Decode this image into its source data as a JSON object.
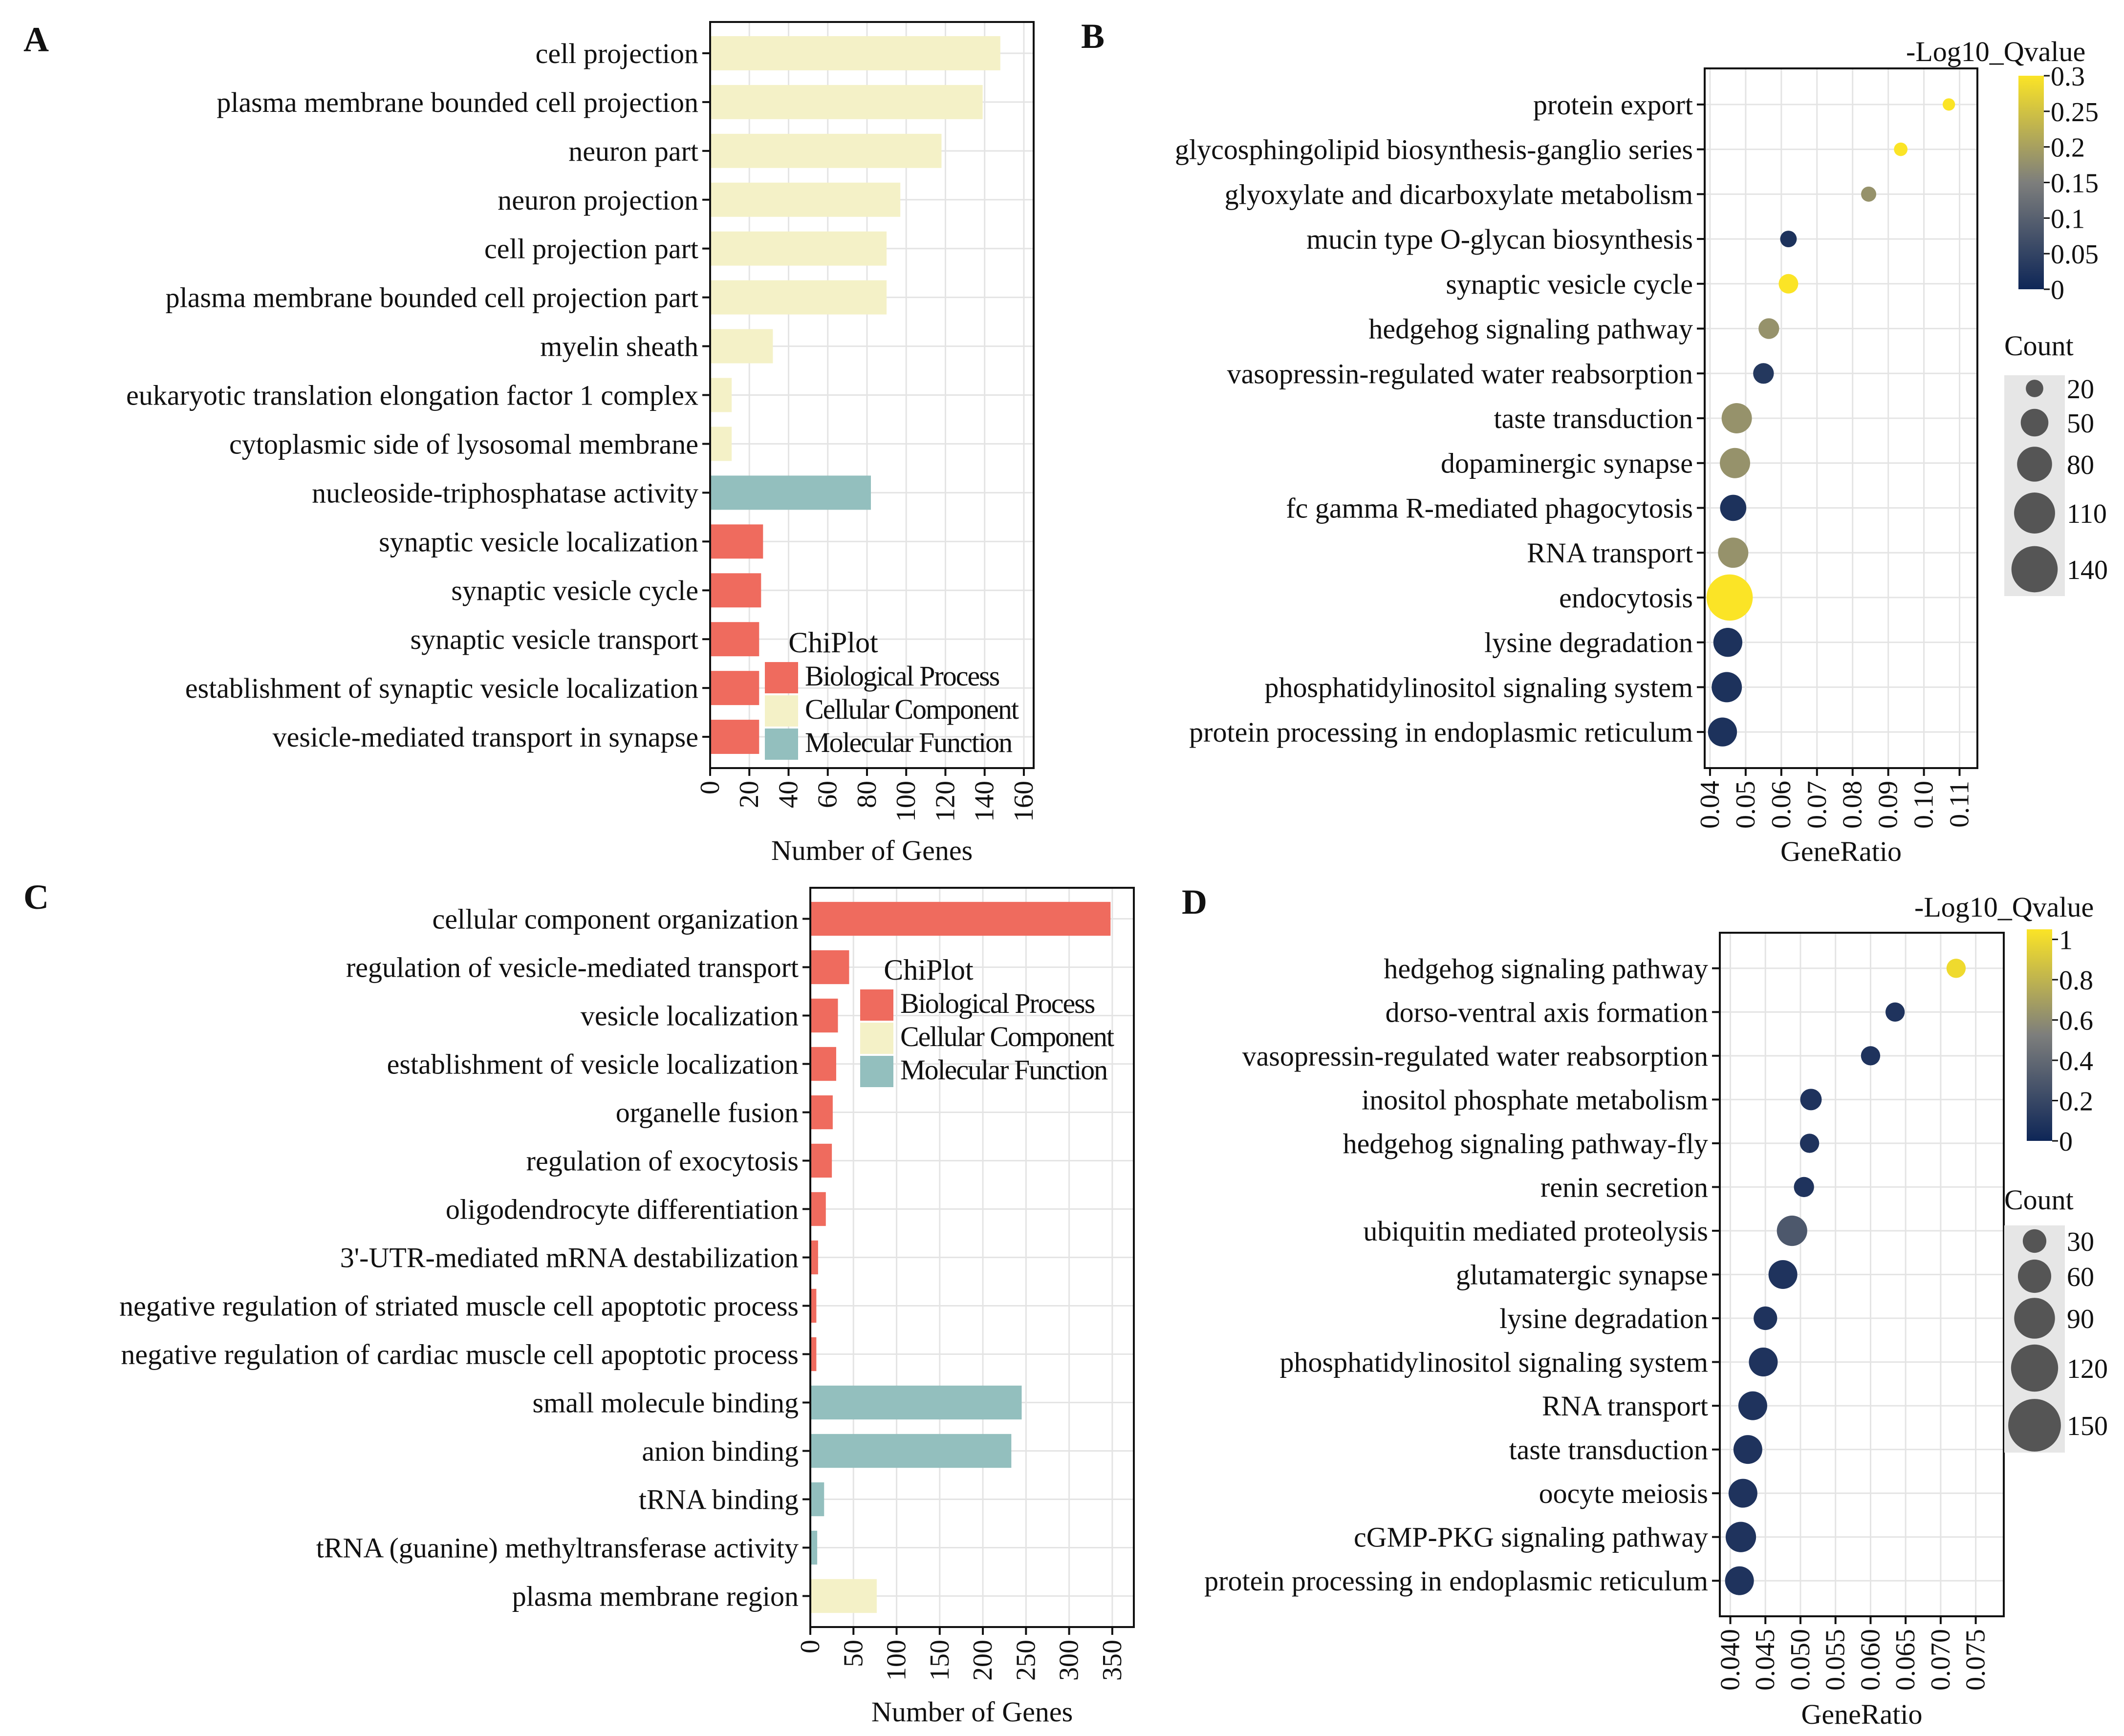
{
  "figure": {
    "panel_labels": [
      "A",
      "B",
      "C",
      "D"
    ]
  },
  "colors": {
    "biological_process": "#EF6B5E",
    "cellular_component": "#F4F1C7",
    "molecular_function": "#93BFBE",
    "grid": "#E4E4E4",
    "legend_bg": "#E6E6E6",
    "size_dot": "#555555",
    "qvalue_low": "#0E2657",
    "qvalue_mid": "#7D7E7C",
    "qvalue_high": "#FBE426"
  },
  "chart_data": [
    {
      "panel": "A",
      "type": "bar",
      "orientation": "horizontal",
      "xlabel": "Number of Genes",
      "xlim": [
        0,
        165
      ],
      "xticks": [
        "0",
        "20",
        "40",
        "60",
        "80",
        "100",
        "120",
        "140",
        "160"
      ],
      "xtick_values": [
        0,
        20,
        40,
        60,
        80,
        100,
        120,
        140,
        160
      ],
      "legend_title": "ChiPlot",
      "legend_items": [
        "Biological Process",
        "Cellular Component",
        "Molecular Function"
      ],
      "categories": [
        "cell projection",
        "plasma membrane bounded cell projection",
        "neuron part",
        "neuron projection",
        "cell projection part",
        "plasma membrane bounded cell projection part",
        "myelin sheath",
        "eukaryotic translation elongation factor 1 complex",
        "cytoplasmic side of lysosomal membrane",
        "nucleoside-triphosphatase activity",
        "synaptic vesicle localization",
        "synaptic vesicle cycle",
        "synaptic vesicle transport",
        "establishment of synaptic vesicle localization",
        "vesicle-mediated transport in synapse"
      ],
      "values": [
        148,
        139,
        118,
        97,
        90,
        90,
        32,
        11,
        11,
        82,
        27,
        26,
        25,
        25,
        25
      ],
      "groups": [
        "CC",
        "CC",
        "CC",
        "CC",
        "CC",
        "CC",
        "CC",
        "CC",
        "CC",
        "MF",
        "BP",
        "BP",
        "BP",
        "BP",
        "BP"
      ]
    },
    {
      "panel": "B",
      "type": "scatter",
      "xlabel": "GeneRatio",
      "xlim": [
        0.0385,
        0.115
      ],
      "xticks": [
        "0.04",
        "0.05",
        "0.06",
        "0.07",
        "0.08",
        "0.09",
        "0.10",
        "0.11"
      ],
      "xtick_values": [
        0.04,
        0.05,
        0.06,
        0.07,
        0.08,
        0.09,
        0.1,
        0.11
      ],
      "color_title": "-Log10_Qvalue",
      "color_lim": [
        0,
        0.3
      ],
      "color_ticks": [
        "0",
        "0.05",
        "0.1",
        "0.15",
        "0.2",
        "0.25",
        "0.3"
      ],
      "color_tick_values": [
        0,
        0.05,
        0.1,
        0.15,
        0.2,
        0.25,
        0.3
      ],
      "size_title": "Count",
      "size_legend": [
        "20",
        "50",
        "80",
        "110",
        "140"
      ],
      "size_legend_values": [
        20,
        50,
        80,
        110,
        140
      ],
      "categories": [
        "protein export",
        "glycosphingolipid biosynthesis-ganglio series",
        "glyoxylate and dicarboxylate metabolism",
        "mucin type O-glycan biosynthesis",
        "synaptic vesicle cycle",
        "hedgehog signaling pathway",
        "vasopressin-regulated water reabsorption",
        "taste transduction",
        "dopaminergic synapse",
        "fc gamma R-mediated phagocytosis",
        "RNA transport",
        "endocytosis",
        "lysine degradation",
        "phosphatidylinositol signaling system",
        "protein processing in endoplasmic reticulum"
      ],
      "x": [
        0.107,
        0.0935,
        0.0845,
        0.062,
        0.062,
        0.0565,
        0.055,
        0.0475,
        0.047,
        0.0465,
        0.0465,
        0.0455,
        0.045,
        0.0447,
        0.0435
      ],
      "qvalue": [
        0.3,
        0.3,
        0.18,
        0.02,
        0.3,
        0.18,
        0.03,
        0.18,
        0.18,
        0.02,
        0.18,
        0.3,
        0.02,
        0.02,
        0.02
      ],
      "count": [
        10,
        12,
        15,
        18,
        25,
        28,
        28,
        60,
        60,
        45,
        60,
        140,
        55,
        60,
        55
      ]
    },
    {
      "panel": "C",
      "type": "bar",
      "orientation": "horizontal",
      "xlabel": "Number of Genes",
      "xlim": [
        0,
        375
      ],
      "xticks": [
        "0",
        "50",
        "100",
        "150",
        "200",
        "250",
        "300",
        "350"
      ],
      "xtick_values": [
        0,
        50,
        100,
        150,
        200,
        250,
        300,
        350
      ],
      "legend_title": "ChiPlot",
      "legend_items": [
        "Biological Process",
        "Cellular Component",
        "Molecular Function"
      ],
      "categories": [
        "cellular component organization",
        "regulation of vesicle-mediated transport",
        "vesicle localization",
        "establishment of vesicle localization",
        "organelle fusion",
        "regulation of exocytosis",
        "oligodendrocyte differentiation",
        "3'-UTR-mediated mRNA destabilization",
        "negative regulation of striated muscle cell apoptotic process",
        "negative regulation of cardiac muscle cell apoptotic process",
        "small molecule binding",
        "anion binding",
        "tRNA binding",
        "tRNA (guanine) methyltransferase activity",
        "plasma membrane region"
      ],
      "values": [
        348,
        45,
        32,
        30,
        26,
        25,
        18,
        9,
        7,
        7,
        245,
        233,
        16,
        8,
        77
      ],
      "groups": [
        "BP",
        "BP",
        "BP",
        "BP",
        "BP",
        "BP",
        "BP",
        "BP",
        "BP",
        "BP",
        "MF",
        "MF",
        "MF",
        "MF",
        "CC"
      ]
    },
    {
      "panel": "D",
      "type": "scatter",
      "xlabel": "GeneRatio",
      "xlim": [
        0.0385,
        0.079
      ],
      "xticks": [
        "0.040",
        "0.045",
        "0.050",
        "0.055",
        "0.060",
        "0.065",
        "0.070",
        "0.075"
      ],
      "xtick_values": [
        0.04,
        0.045,
        0.05,
        0.055,
        0.06,
        0.065,
        0.07,
        0.075
      ],
      "color_title": "-Log10_Qvalue",
      "color_lim": [
        0,
        1.05
      ],
      "color_ticks": [
        "0",
        "0.2",
        "0.4",
        "0.6",
        "0.8",
        "1"
      ],
      "color_tick_values": [
        0,
        0.2,
        0.4,
        0.6,
        0.8,
        1.0
      ],
      "size_title": "Count",
      "size_legend": [
        "30",
        "60",
        "90",
        "120",
        "150"
      ],
      "size_legend_values": [
        30,
        60,
        90,
        120,
        150
      ],
      "categories": [
        "hedgehog signaling pathway",
        "dorso-ventral axis formation",
        "vasopressin-regulated water reabsorption",
        "inositol phosphate metabolism",
        "hedgehog signaling pathway-fly",
        "renin secretion",
        "ubiquitin mediated proteolysis",
        "glutamatergic synapse",
        "lysine degradation",
        "phosphatidylinositol signaling system",
        "RNA transport",
        "taste transduction",
        "oocyte meiosis",
        "cGMP-PKG signaling pathway",
        "protein processing in endoplasmic reticulum"
      ],
      "x": [
        0.0722,
        0.0635,
        0.06,
        0.0515,
        0.0513,
        0.0505,
        0.0488,
        0.0475,
        0.045,
        0.0447,
        0.0432,
        0.0425,
        0.0418,
        0.0415,
        0.0413
      ],
      "qvalue": [
        1.0,
        0.08,
        0.08,
        0.08,
        0.08,
        0.08,
        0.3,
        0.08,
        0.08,
        0.08,
        0.08,
        0.08,
        0.08,
        0.08,
        0.08
      ],
      "count": [
        20,
        20,
        20,
        25,
        20,
        22,
        50,
        45,
        30,
        45,
        45,
        45,
        45,
        50,
        45
      ]
    }
  ]
}
